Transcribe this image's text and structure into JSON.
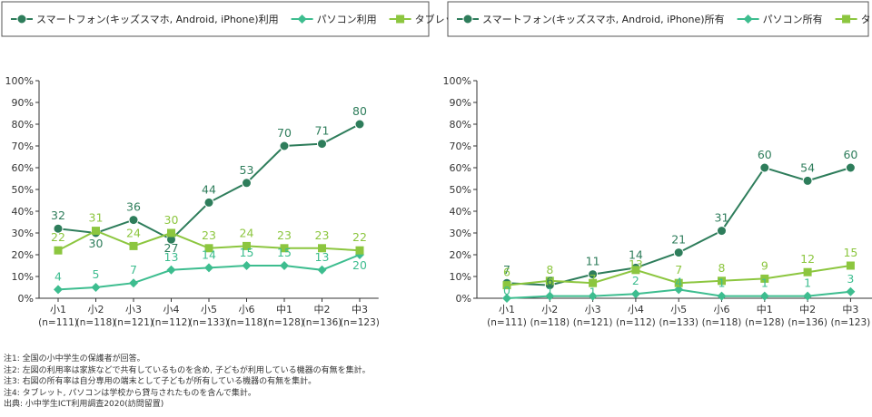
{
  "chart_data": [
    {
      "type": "line",
      "categories": [
        "小1",
        "小2",
        "小3",
        "小4",
        "小5",
        "小6",
        "中1",
        "中2",
        "中3"
      ],
      "category_n": [
        "(n=111)",
        "(n=118)",
        "(n=121)",
        "(n=112)",
        "(n=133)",
        "(n=118)",
        "(n=128)",
        "(n=136)",
        "(n=123)"
      ],
      "ylim": [
        0,
        100
      ],
      "yticks": [
        "0%",
        "10%",
        "20%",
        "30%",
        "40%",
        "50%",
        "60%",
        "70%",
        "80%",
        "90%",
        "100%"
      ],
      "grid": false,
      "legend_position": "top",
      "series": [
        {
          "name": "スマートフォン(キッズスマホ, Android, iPhone)利用",
          "marker": "circle",
          "color": "#2e7d5b",
          "values": [
            32,
            30,
            36,
            27,
            44,
            53,
            70,
            71,
            80
          ]
        },
        {
          "name": "パソコン利用",
          "marker": "diamond",
          "color": "#3dbd8f",
          "values": [
            4,
            5,
            7,
            13,
            14,
            15,
            15,
            13,
            20
          ]
        },
        {
          "name": "タブレット利用",
          "marker": "square",
          "color": "#8cc63f",
          "values": [
            22,
            31,
            24,
            30,
            23,
            24,
            23,
            23,
            22
          ]
        }
      ]
    },
    {
      "type": "line",
      "categories": [
        "小1",
        "小2",
        "小3",
        "小4",
        "小5",
        "小6",
        "中1",
        "中2",
        "中3"
      ],
      "category_n": [
        "(n=111)",
        "(n=118)",
        "(n=121)",
        "(n=112)",
        "(n=133)",
        "(n=118)",
        "(n=128)",
        "(n=136)",
        "(n=123)"
      ],
      "ylim": [
        0,
        100
      ],
      "yticks": [
        "0%",
        "10%",
        "20%",
        "30%",
        "40%",
        "50%",
        "60%",
        "70%",
        "80%",
        "90%",
        "100%"
      ],
      "grid": false,
      "legend_position": "top",
      "series": [
        {
          "name": "スマートフォン(キッズスマホ, Android, iPhone)所有",
          "marker": "circle",
          "color": "#2e7d5b",
          "values": [
            7,
            6,
            11,
            14,
            21,
            31,
            60,
            54,
            60
          ]
        },
        {
          "name": "パソコン所有",
          "marker": "diamond",
          "color": "#3dbd8f",
          "values": [
            0,
            1,
            1,
            2,
            4,
            1,
            1,
            1,
            3
          ]
        },
        {
          "name": "タブレット所有",
          "marker": "square",
          "color": "#8cc63f",
          "values": [
            6,
            8,
            7,
            13,
            7,
            8,
            9,
            12,
            15
          ]
        }
      ]
    }
  ],
  "notes": [
    "注1: 全国の小中学生の保護者が回答。",
    "注2: 左図の利用率は家族などで共有しているものを含め, 子どもが利用している機器の有無を集計。",
    "注3: 右図の所有率は自分専用の端末として子どもが所有している機器の有無を集計。",
    "注4: タブレット, パソコンは学校から貸与されたものを含んで集計。",
    "出典: 小中学生ICT利用調査2020(訪問留置)"
  ]
}
